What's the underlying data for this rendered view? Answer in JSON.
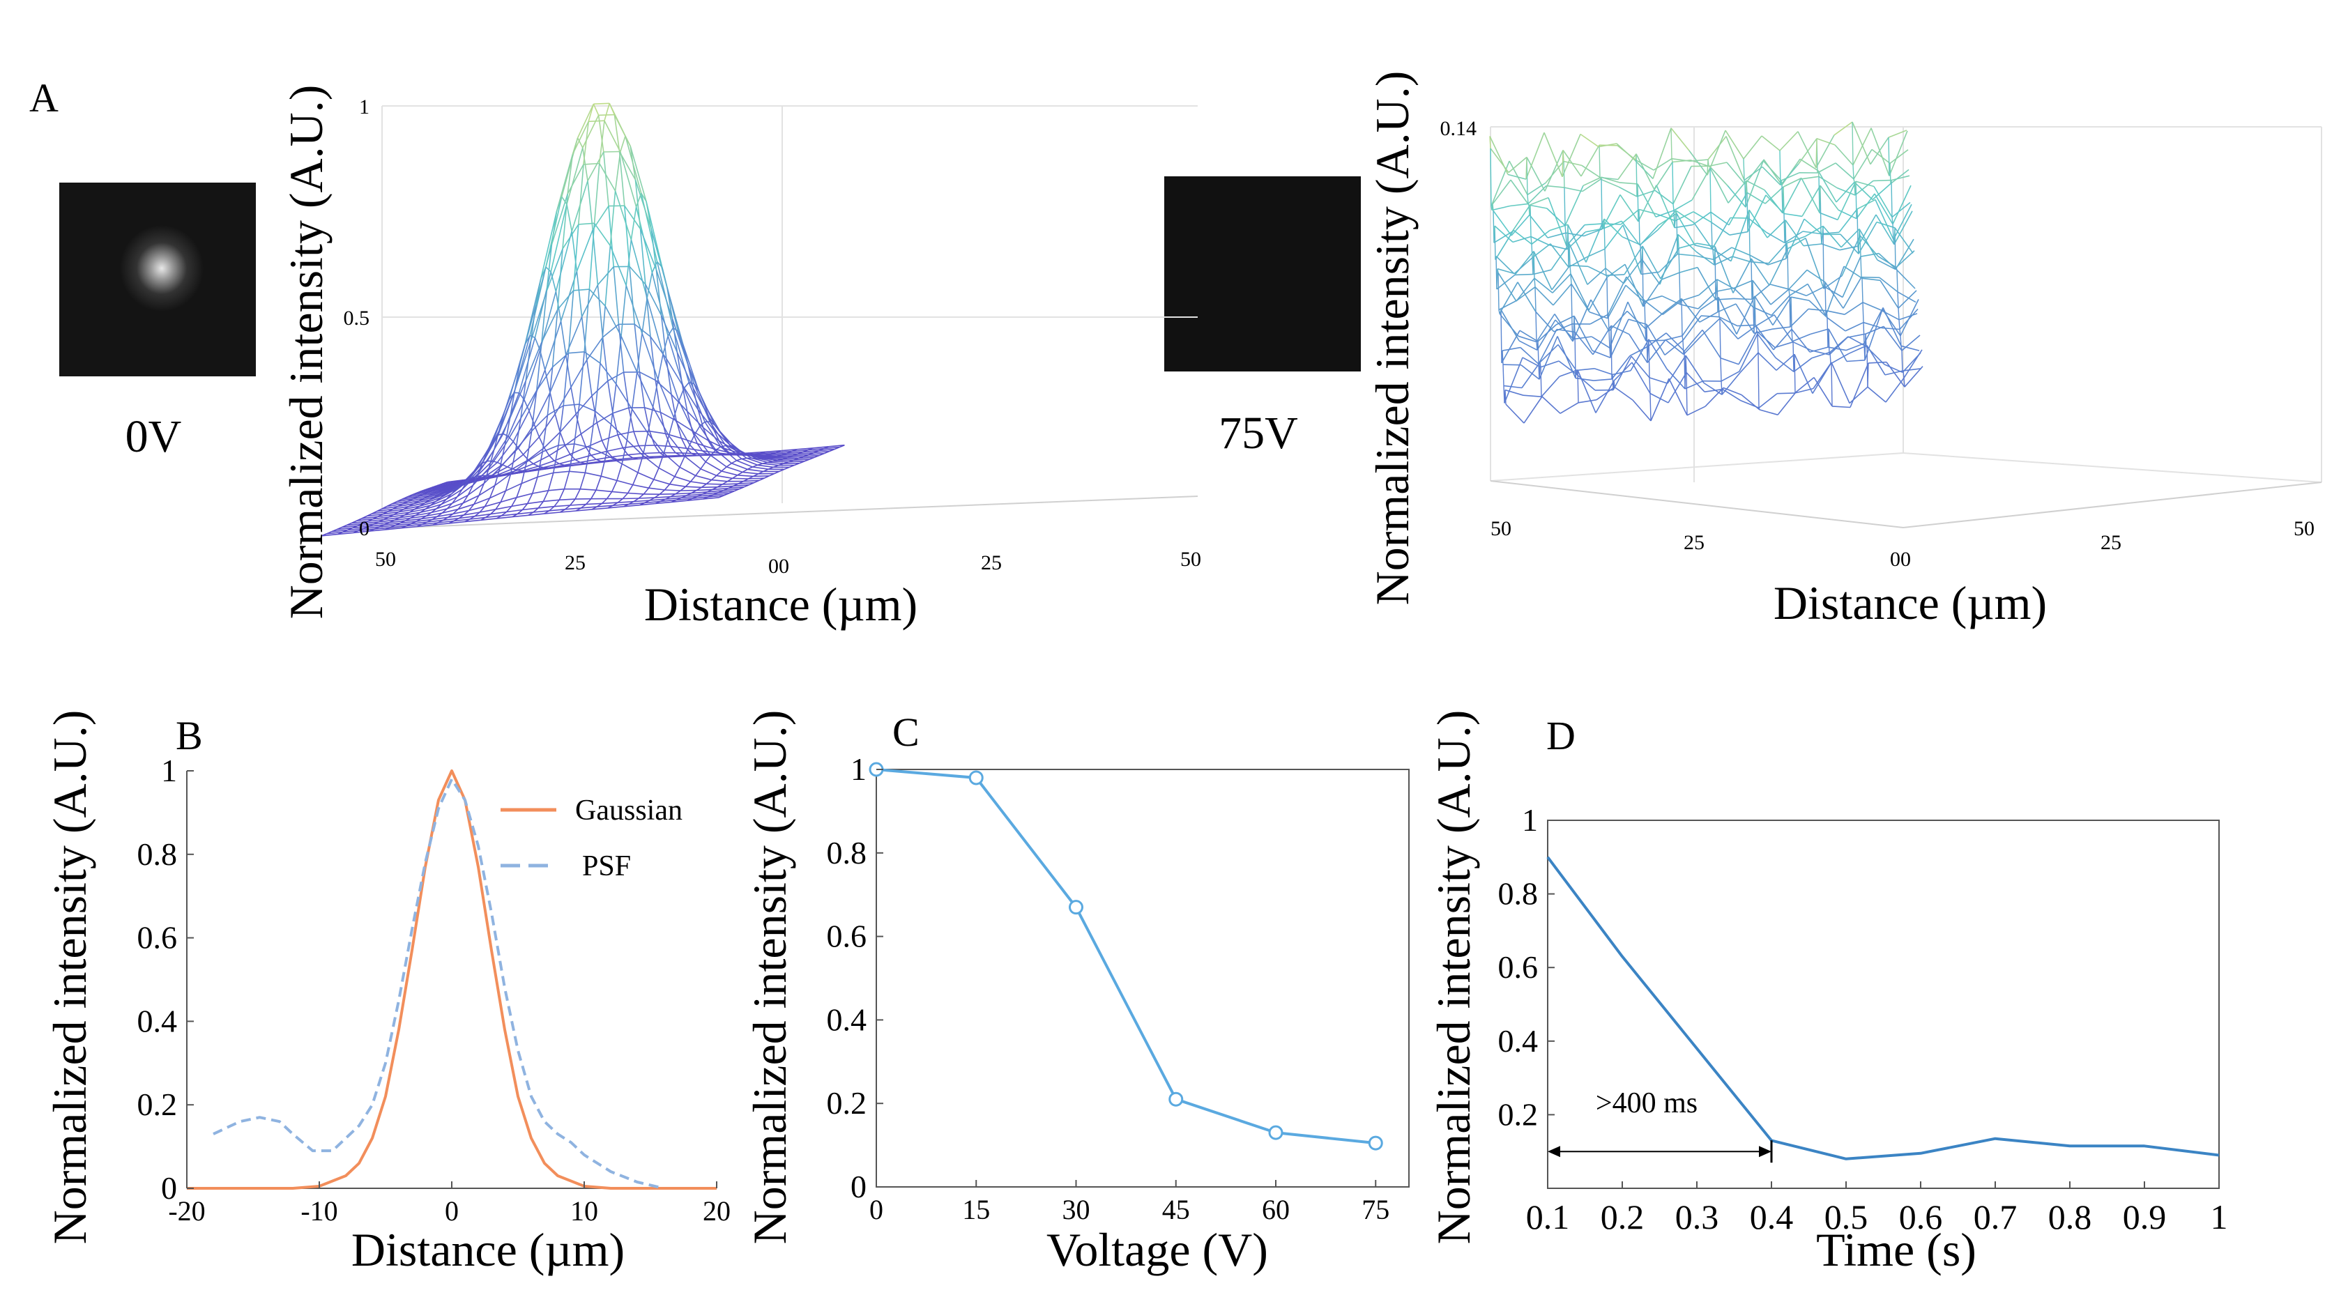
{
  "panels": {
    "A": {
      "label": "A",
      "images": [
        {
          "caption": "0V",
          "description": "bright spot"
        },
        {
          "caption": "75V",
          "description": "dark"
        }
      ],
      "surface_left": {
        "ylabel": "Normalized intensity (A.U.)",
        "xlabel": "Distance (µm)",
        "z_ticks": [
          "0",
          "0.5",
          "1"
        ],
        "x_ticks": [
          "50",
          "25",
          "00",
          "25",
          "50"
        ]
      },
      "surface_right": {
        "ylabel": "Normalized intensity (A.U.)",
        "xlabel": "Distance (µm)",
        "z_ticks": [
          "0.14"
        ],
        "x_ticks": [
          "50",
          "25",
          "00",
          "25",
          "50"
        ]
      }
    },
    "B": {
      "label": "B"
    },
    "C": {
      "label": "C"
    },
    "D": {
      "label": "D",
      "annotation": ">400 ms"
    }
  },
  "chart_data": [
    {
      "id": "B",
      "type": "line",
      "xlabel": "Distance (µm)",
      "ylabel": "Normalized intensity (A.U.)",
      "xlim": [
        -20,
        20
      ],
      "ylim": [
        0,
        1
      ],
      "x_ticks": [
        -20,
        -10,
        0,
        10,
        20
      ],
      "y_ticks": [
        0,
        0.2,
        0.4,
        0.6,
        0.8,
        1
      ],
      "y_tick_labels": [
        "0",
        "0.2",
        "0.4",
        "0.6",
        "0.8",
        "1"
      ],
      "legend": {
        "position": "top-right"
      },
      "series": [
        {
          "name": "Gaussian",
          "color": "#f28e5b",
          "dash": false,
          "x": [
            -20,
            -12,
            -10,
            -8,
            -7,
            -6,
            -5,
            -4,
            -3,
            -2,
            -1,
            0,
            1,
            2,
            3,
            4,
            5,
            6,
            7,
            8,
            10,
            12,
            20
          ],
          "y": [
            0,
            0,
            0.005,
            0.03,
            0.06,
            0.12,
            0.22,
            0.38,
            0.57,
            0.77,
            0.93,
            1.0,
            0.93,
            0.77,
            0.57,
            0.38,
            0.22,
            0.12,
            0.06,
            0.03,
            0.005,
            0,
            0
          ]
        },
        {
          "name": "PSF",
          "color": "#8fb3e0",
          "dash": true,
          "x": [
            -18,
            -16,
            -14.5,
            -13,
            -12,
            -10.5,
            -9,
            -8,
            -7,
            -6,
            -5,
            -4,
            -3,
            -2,
            -1,
            0,
            1,
            2,
            3,
            4,
            5,
            6,
            7,
            8,
            9,
            10,
            12,
            14,
            16
          ],
          "y": [
            0.13,
            0.16,
            0.17,
            0.16,
            0.13,
            0.09,
            0.09,
            0.12,
            0.15,
            0.2,
            0.3,
            0.45,
            0.62,
            0.78,
            0.91,
            0.98,
            0.93,
            0.82,
            0.66,
            0.48,
            0.33,
            0.22,
            0.16,
            0.13,
            0.11,
            0.08,
            0.04,
            0.015,
            0
          ]
        }
      ]
    },
    {
      "id": "C",
      "type": "line",
      "xlabel": "Voltage (V)",
      "ylabel": "Normalized intensity (A.U.)",
      "xlim": [
        0,
        80
      ],
      "ylim": [
        0,
        1
      ],
      "x_ticks": [
        0,
        15,
        30,
        45,
        60,
        75
      ],
      "y_ticks": [
        0,
        0.2,
        0.4,
        0.6,
        0.8,
        1
      ],
      "y_tick_labels": [
        "0",
        "0.2",
        "0.4",
        "0.6",
        "0.8",
        "1"
      ],
      "series": [
        {
          "name": "intensity",
          "color": "#5aa9e0",
          "markers": true,
          "x": [
            0,
            15,
            30,
            45,
            60,
            75
          ],
          "y": [
            1.0,
            0.98,
            0.67,
            0.21,
            0.13,
            0.105
          ]
        }
      ]
    },
    {
      "id": "D",
      "type": "line",
      "xlabel": "Time (s)",
      "ylabel": "Normalized intensity (A.U.)",
      "xlim": [
        0.1,
        1.0
      ],
      "ylim": [
        0,
        1
      ],
      "x_ticks": [
        0.1,
        0.2,
        0.3,
        0.4,
        0.5,
        0.6,
        0.7,
        0.8,
        0.9,
        1.0
      ],
      "x_tick_labels": [
        "0.1",
        "0.2",
        "0.3",
        "0.4",
        "0.5",
        "0.6",
        "0.7",
        "0.8",
        "0.9",
        "1"
      ],
      "y_ticks": [
        0.2,
        0.4,
        0.6,
        0.8,
        1
      ],
      "y_tick_labels": [
        "0.2",
        "0.4",
        "0.6",
        "0.8",
        "1"
      ],
      "series": [
        {
          "name": "intensity",
          "color": "#3b84c4",
          "x": [
            0.1,
            0.2,
            0.3,
            0.4,
            0.5,
            0.6,
            0.7,
            0.8,
            0.9,
            1.0
          ],
          "y": [
            0.9,
            0.63,
            0.38,
            0.13,
            0.08,
            0.095,
            0.135,
            0.115,
            0.115,
            0.09
          ]
        }
      ],
      "annotation": {
        "x_start": 0.1,
        "x_end": 0.4,
        "y": 0.1
      }
    }
  ]
}
